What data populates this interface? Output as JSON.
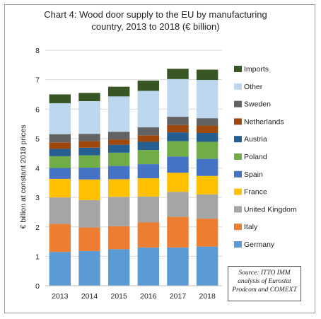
{
  "chart_data": {
    "type": "bar",
    "stacked": true,
    "title": "Chart 4: Wood door supply to the EU by manufacturing country, 2013 to 2018 (€ billion)",
    "title_lines": [
      "Chart 4: Wood door supply to the EU by manufacturing",
      "country, 2013 to 2018 (€ billion)"
    ],
    "xlabel": "",
    "ylabel": "€ billion at constant 2018 prices",
    "ylim": [
      0,
      8
    ],
    "yticks": [
      "0",
      "1",
      "2",
      "3",
      "4",
      "5",
      "6",
      "7",
      "8"
    ],
    "categories": [
      "2013",
      "2014",
      "2015",
      "2016",
      "2017",
      "2018"
    ],
    "legend_position": "right",
    "series": [
      {
        "name": "Germany",
        "color": "#5b9bd5",
        "values": [
          1.15,
          1.18,
          1.24,
          1.3,
          1.3,
          1.33
        ]
      },
      {
        "name": "Italy",
        "color": "#ed7d31",
        "values": [
          0.95,
          0.8,
          0.78,
          0.85,
          1.04,
          0.95
        ]
      },
      {
        "name": "United Kingdom",
        "color": "#a5a5a5",
        "values": [
          0.9,
          0.93,
          1.0,
          0.88,
          0.85,
          0.82
        ]
      },
      {
        "name": "France",
        "color": "#ffc000",
        "values": [
          0.63,
          0.7,
          0.6,
          0.62,
          0.65,
          0.63
        ]
      },
      {
        "name": "Spain",
        "color": "#4472c4",
        "values": [
          0.37,
          0.4,
          0.45,
          0.48,
          0.55,
          0.58
        ]
      },
      {
        "name": "Poland",
        "color": "#70ad47",
        "values": [
          0.4,
          0.42,
          0.45,
          0.48,
          0.52,
          0.58
        ]
      },
      {
        "name": "Austria",
        "color": "#255e91",
        "values": [
          0.25,
          0.26,
          0.27,
          0.28,
          0.3,
          0.3
        ]
      },
      {
        "name": "Netherlands",
        "color": "#9e480e",
        "values": [
          0.22,
          0.22,
          0.18,
          0.22,
          0.25,
          0.25
        ]
      },
      {
        "name": "Sweden",
        "color": "#636363",
        "values": [
          0.28,
          0.25,
          0.26,
          0.27,
          0.28,
          0.25
        ]
      },
      {
        "name": "Other",
        "color": "#bdd7ee",
        "values": [
          1.05,
          1.11,
          1.2,
          1.24,
          1.28,
          1.3
        ]
      },
      {
        "name": "Imports",
        "color": "#375623",
        "values": [
          0.3,
          0.28,
          0.33,
          0.35,
          0.35,
          0.35
        ]
      }
    ]
  },
  "source_lines": [
    "Source: ITTO IMM",
    "analysis of Eurostat",
    "Prodcom and COMEXT"
  ]
}
